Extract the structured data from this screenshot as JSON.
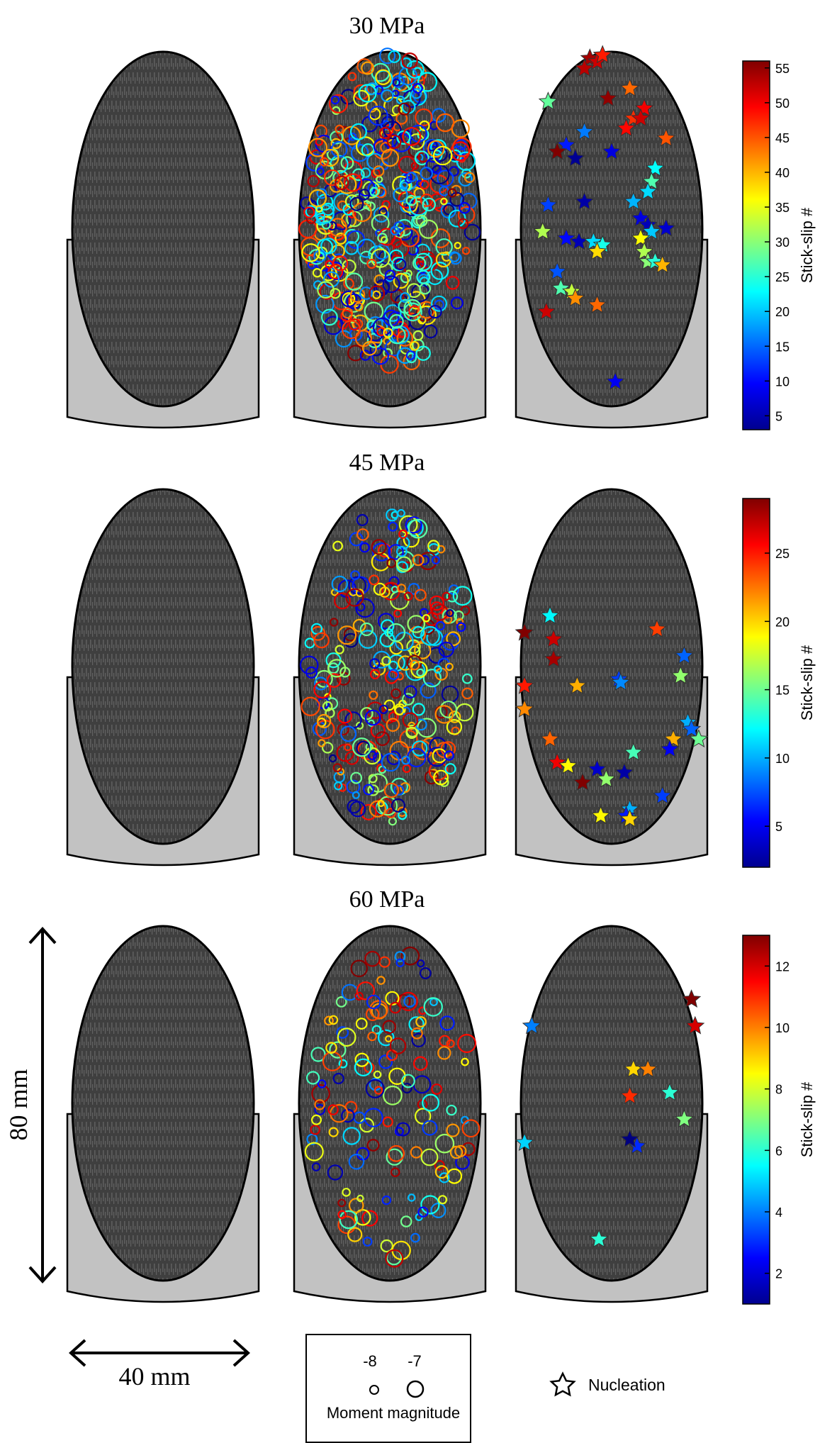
{
  "rows": [
    {
      "title": "30 MPa",
      "colorbar": {
        "label": "Stick-slip #",
        "ticks": [
          5,
          10,
          15,
          20,
          25,
          30,
          35,
          40,
          45,
          50,
          55
        ],
        "range": [
          3,
          56
        ]
      },
      "event_count": 420,
      "nucleations": [
        [
          0.38,
          0.02,
          54
        ],
        [
          0.42,
          0.03,
          52
        ],
        [
          0.45,
          0.01,
          48
        ],
        [
          0.35,
          0.05,
          53
        ],
        [
          0.6,
          0.11,
          44
        ],
        [
          0.48,
          0.14,
          55
        ],
        [
          0.68,
          0.17,
          50
        ],
        [
          0.62,
          0.2,
          47
        ],
        [
          0.66,
          0.2,
          52
        ],
        [
          0.58,
          0.23,
          49
        ],
        [
          0.8,
          0.26,
          45
        ],
        [
          0.15,
          0.15,
          28
        ],
        [
          0.35,
          0.24,
          16
        ],
        [
          0.25,
          0.28,
          11
        ],
        [
          0.2,
          0.3,
          9
        ],
        [
          0.5,
          0.3,
          8
        ],
        [
          0.2,
          0.3,
          56
        ],
        [
          0.3,
          0.32,
          4
        ],
        [
          0.74,
          0.35,
          23
        ],
        [
          0.72,
          0.39,
          27
        ],
        [
          0.7,
          0.42,
          21
        ],
        [
          0.62,
          0.45,
          19
        ],
        [
          0.35,
          0.45,
          5
        ],
        [
          0.15,
          0.46,
          13
        ],
        [
          0.66,
          0.5,
          8
        ],
        [
          0.7,
          0.52,
          6
        ],
        [
          0.72,
          0.54,
          20
        ],
        [
          0.8,
          0.53,
          7
        ],
        [
          0.12,
          0.54,
          32
        ],
        [
          0.25,
          0.56,
          10
        ],
        [
          0.32,
          0.57,
          6
        ],
        [
          0.4,
          0.57,
          21
        ],
        [
          0.45,
          0.58,
          24
        ],
        [
          0.42,
          0.6,
          38
        ],
        [
          0.66,
          0.56,
          36
        ],
        [
          0.68,
          0.6,
          32
        ],
        [
          0.7,
          0.63,
          30
        ],
        [
          0.74,
          0.63,
          25
        ],
        [
          0.78,
          0.64,
          40
        ],
        [
          0.2,
          0.66,
          14
        ],
        [
          0.22,
          0.71,
          27
        ],
        [
          0.28,
          0.72,
          33
        ],
        [
          0.3,
          0.74,
          42
        ],
        [
          0.42,
          0.76,
          44
        ],
        [
          0.14,
          0.78,
          52
        ],
        [
          0.52,
          0.99,
          9
        ]
      ]
    },
    {
      "title": "45 MPa",
      "colorbar": {
        "label": "Stick-slip #",
        "ticks": [
          5,
          10,
          15,
          20,
          25
        ],
        "range": [
          2,
          29
        ]
      },
      "event_count": 260,
      "nucleations": [
        [
          0.16,
          0.38,
          12
        ],
        [
          0.02,
          0.43,
          29
        ],
        [
          0.18,
          0.45,
          27
        ],
        [
          0.18,
          0.51,
          28
        ],
        [
          0.75,
          0.42,
          24
        ],
        [
          0.9,
          0.5,
          8
        ],
        [
          0.88,
          0.56,
          16
        ],
        [
          0.54,
          0.57,
          7
        ],
        [
          0.55,
          0.58,
          9
        ],
        [
          0.31,
          0.59,
          21
        ],
        [
          0.02,
          0.59,
          25
        ],
        [
          0.02,
          0.66,
          22
        ],
        [
          0.16,
          0.75,
          23
        ],
        [
          0.92,
          0.7,
          10
        ],
        [
          0.94,
          0.72,
          8
        ],
        [
          0.98,
          0.75,
          15
        ],
        [
          0.84,
          0.75,
          21
        ],
        [
          0.82,
          0.78,
          5
        ],
        [
          0.62,
          0.79,
          14
        ],
        [
          0.2,
          0.82,
          26
        ],
        [
          0.26,
          0.83,
          19
        ],
        [
          0.42,
          0.84,
          4
        ],
        [
          0.57,
          0.85,
          3
        ],
        [
          0.47,
          0.87,
          16
        ],
        [
          0.34,
          0.88,
          29
        ],
        [
          0.78,
          0.92,
          7
        ],
        [
          0.6,
          0.96,
          10
        ],
        [
          0.58,
          0.98,
          6
        ],
        [
          0.44,
          0.98,
          19
        ],
        [
          0.6,
          0.99,
          20
        ]
      ]
    },
    {
      "title": "60 MPa",
      "colorbar": {
        "label": "Stick-slip #",
        "ticks": [
          2,
          4,
          6,
          8,
          10,
          12
        ],
        "range": [
          1,
          13
        ]
      },
      "event_count": 140,
      "nucleations": [
        [
          0.94,
          0.22,
          13
        ],
        [
          0.96,
          0.3,
          12
        ],
        [
          0.06,
          0.3,
          4
        ],
        [
          0.62,
          0.43,
          9
        ],
        [
          0.7,
          0.43,
          10
        ],
        [
          0.82,
          0.5,
          6
        ],
        [
          0.6,
          0.51,
          11
        ],
        [
          0.9,
          0.58,
          7
        ],
        [
          0.6,
          0.64,
          2
        ],
        [
          0.64,
          0.66,
          3
        ],
        [
          0.6,
          0.64,
          1
        ],
        [
          0.02,
          0.65,
          5
        ],
        [
          0.43,
          0.94,
          6
        ]
      ]
    }
  ],
  "scale_vertical": "80 mm",
  "scale_horizontal": "40 mm",
  "legend": {
    "small": "-8",
    "large": "-7",
    "label": "Moment magnitude"
  },
  "nucleation_legend": "Nucleation"
}
